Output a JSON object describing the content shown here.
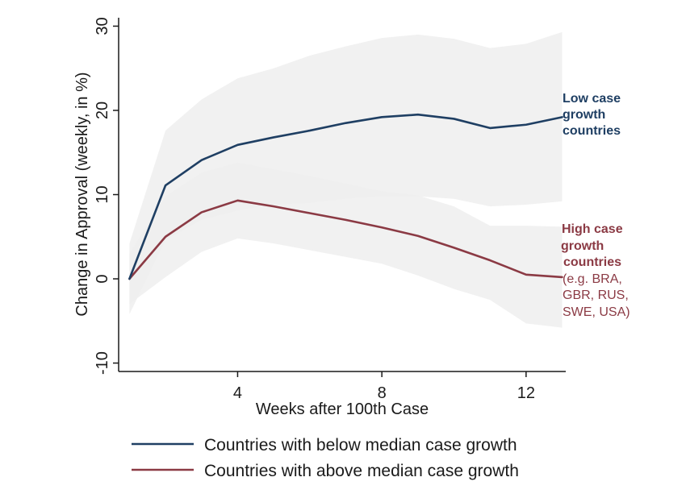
{
  "chart_data": {
    "type": "line",
    "xlabel": "Weeks after 100th Case",
    "ylabel": "Change in Approval (weekly, in %)",
    "xlim": [
      0.7,
      13.1
    ],
    "ylim": [
      -11,
      31
    ],
    "xticks": [
      4,
      8,
      12
    ],
    "yticks": [
      -10,
      0,
      10,
      20,
      30
    ],
    "grid": false,
    "legend_position": "bottom",
    "x": [
      1,
      2,
      3,
      4,
      5,
      6,
      7,
      8,
      9,
      10,
      11,
      12,
      13
    ],
    "series": [
      {
        "name": "Countries with below median case growth",
        "color": "#1f3f63",
        "values": [
          0,
          11.1,
          14.1,
          15.9,
          16.8,
          17.6,
          18.5,
          19.2,
          19.5,
          19.0,
          17.9,
          18.3,
          19.2
        ],
        "ci_upper": [
          4.2,
          17.6,
          21.3,
          23.8,
          25.0,
          26.5,
          27.6,
          28.6,
          29.0,
          28.5,
          27.4,
          27.9,
          29.3
        ],
        "ci_lower": [
          -4.2,
          4.6,
          7.0,
          8.1,
          8.8,
          9.0,
          9.5,
          9.8,
          9.8,
          9.5,
          8.6,
          8.8,
          9.2
        ]
      },
      {
        "name": "Countries with above median case growth",
        "color": "#8b3a44",
        "values": [
          0,
          5.0,
          7.9,
          9.3,
          8.6,
          7.8,
          7.0,
          6.1,
          5.1,
          3.7,
          2.2,
          0.5,
          0.2
        ],
        "ci_upper": [
          3.0,
          9.8,
          12.6,
          13.8,
          13.0,
          12.2,
          11.3,
          10.4,
          9.9,
          8.6,
          6.3,
          6.3,
          6.2
        ],
        "ci_lower": [
          -3.0,
          0.2,
          3.2,
          4.8,
          4.2,
          3.4,
          2.6,
          1.8,
          0.4,
          -1.2,
          -2.5,
          -5.3,
          -5.8
        ]
      }
    ],
    "annotations": {
      "low": [
        "Low case",
        "growth",
        "countries"
      ],
      "high_bold": [
        "High case",
        "growth",
        "countries"
      ],
      "high_normal": [
        "(e.g. BRA,",
        "GBR, RUS,",
        "SWE, USA)"
      ]
    },
    "band_color": "#eeeeee"
  }
}
